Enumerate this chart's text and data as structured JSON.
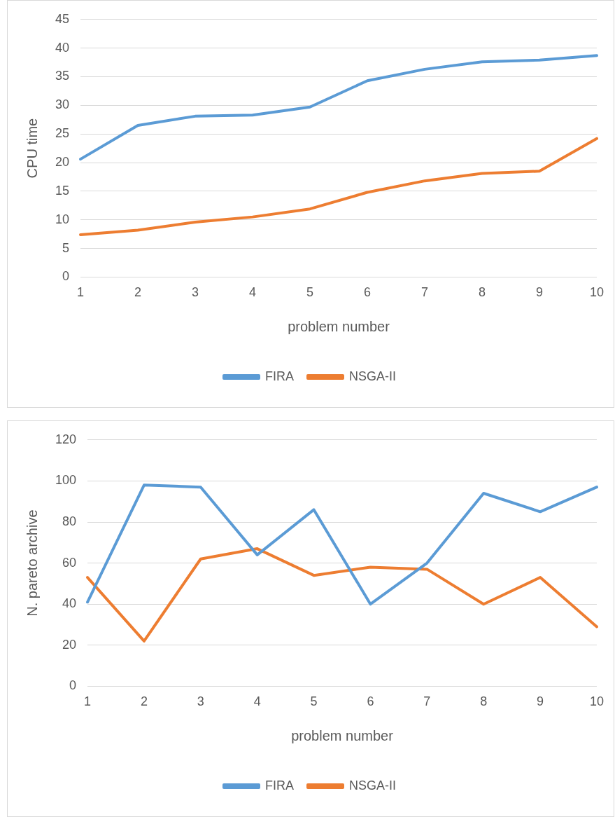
{
  "chart_data": [
    {
      "type": "line",
      "xlabel": "problem number",
      "ylabel": "CPU time",
      "categories": [
        "1",
        "2",
        "3",
        "4",
        "5",
        "6",
        "7",
        "8",
        "9",
        "10"
      ],
      "series": [
        {
          "name": "FIRA",
          "color": "#5b9bd5",
          "values": [
            20.6,
            26.5,
            28.1,
            28.3,
            29.7,
            34.3,
            36.3,
            37.6,
            37.9,
            38.7
          ]
        },
        {
          "name": "NSGA-II",
          "color": "#ed7d31",
          "values": [
            7.4,
            8.2,
            9.6,
            10.5,
            11.9,
            14.8,
            16.8,
            18.1,
            18.5,
            24.2
          ]
        }
      ],
      "ylim": [
        0,
        45
      ],
      "yticks": [
        0,
        5,
        10,
        15,
        20,
        25,
        30,
        35,
        40,
        45
      ],
      "grid": "y",
      "legend": "bottom"
    },
    {
      "type": "line",
      "xlabel": "problem number",
      "ylabel": "N. pareto archive",
      "categories": [
        "1",
        "2",
        "3",
        "4",
        "5",
        "6",
        "7",
        "8",
        "9",
        "10"
      ],
      "series": [
        {
          "name": "FIRA",
          "color": "#5b9bd5",
          "values": [
            41,
            98,
            97,
            64,
            86,
            40,
            60,
            94,
            85,
            97
          ]
        },
        {
          "name": "NSGA-II",
          "color": "#ed7d31",
          "values": [
            53,
            22,
            62,
            67,
            54,
            58,
            57,
            40,
            53,
            29
          ]
        }
      ],
      "ylim": [
        0,
        120
      ],
      "yticks": [
        0,
        20,
        40,
        60,
        80,
        100,
        120
      ],
      "grid": "y",
      "legend": "bottom"
    }
  ]
}
